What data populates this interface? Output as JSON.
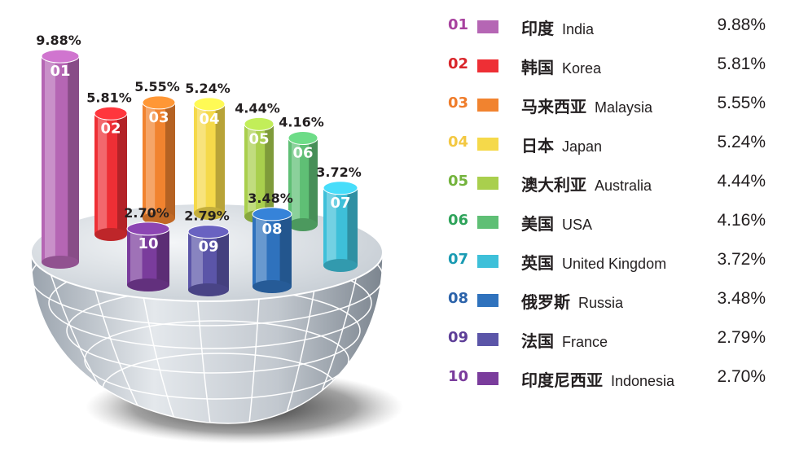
{
  "chart_data": {
    "type": "bar",
    "categories": [
      "01",
      "02",
      "03",
      "04",
      "05",
      "06",
      "07",
      "08",
      "09",
      "10"
    ],
    "values": [
      9.88,
      5.81,
      5.55,
      5.24,
      4.44,
      4.16,
      3.72,
      3.48,
      2.79,
      2.7
    ],
    "value_labels": [
      "9.88%",
      "5.81%",
      "5.55%",
      "5.24%",
      "4.44%",
      "4.16%",
      "3.72%",
      "3.48%",
      "2.79%",
      "2.70%"
    ],
    "colors": [
      "#b566b4",
      "#ee2f35",
      "#f1832f",
      "#f5d94a",
      "#a9cf4d",
      "#5fbf75",
      "#3ec0d9",
      "#2f72bd",
      "#5b55a8",
      "#7a3c9c"
    ],
    "num_colors": [
      "#a8429f",
      "#d9262b",
      "#ef7c2a",
      "#f3c842",
      "#73b33c",
      "#2ea35a",
      "#1a9bb3",
      "#2c63aa",
      "#5e3f98",
      "#7a3c9c"
    ],
    "legend": [
      {
        "num": "01",
        "cn": "印度",
        "en": "India",
        "pct": "9.88%"
      },
      {
        "num": "02",
        "cn": "韩国",
        "en": "Korea",
        "pct": "5.81%"
      },
      {
        "num": "03",
        "cn": "马来西亚",
        "en": "Malaysia",
        "pct": "5.55%"
      },
      {
        "num": "04",
        "cn": "日本",
        "en": "Japan",
        "pct": "5.24%"
      },
      {
        "num": "05",
        "cn": "澳大利亚",
        "en": "Australia",
        "pct": "4.44%"
      },
      {
        "num": "06",
        "cn": "美国",
        "en": "USA",
        "pct": "4.16%"
      },
      {
        "num": "07",
        "cn": "英国",
        "en": "United Kingdom",
        "pct": "3.72%"
      },
      {
        "num": "08",
        "cn": "俄罗斯",
        "en": "Russia",
        "pct": "3.48%"
      },
      {
        "num": "09",
        "cn": "法国",
        "en": "France",
        "pct": "2.79%"
      },
      {
        "num": "10",
        "cn": "印度尼西亚",
        "en": "Indonesia",
        "pct": "2.70%"
      }
    ]
  }
}
